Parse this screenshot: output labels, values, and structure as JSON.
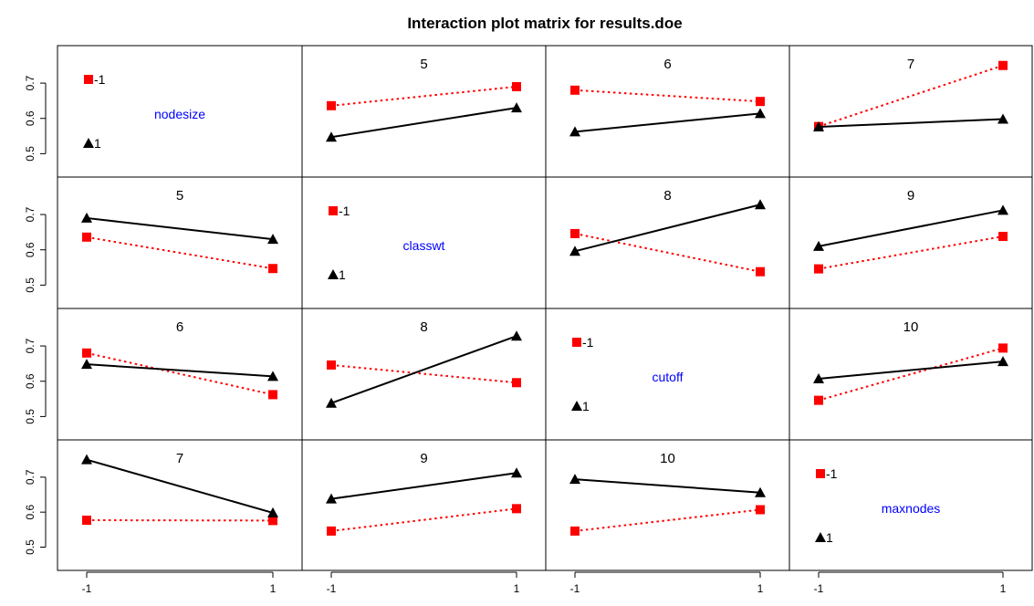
{
  "title": "Interaction plot matrix for results.doe",
  "colors": {
    "level_minus1": "#ff0000",
    "level_plus1": "#000000",
    "factor_label": "#0000ff",
    "frame": "#000000"
  },
  "chart_data": {
    "type": "line",
    "title": "Interaction plot matrix for results.doe",
    "factors": [
      "nodesize",
      "classwt",
      "cutoff",
      "maxnodes"
    ],
    "x_levels": [
      -1,
      1
    ],
    "x_tick_labels": [
      "-1",
      "1"
    ],
    "ylim": [
      0.47,
      0.77
    ],
    "y_ticks": [
      0.5,
      0.6,
      0.7
    ],
    "y_tick_labels": [
      "0.5",
      "0.6",
      "0.7"
    ],
    "grid": false,
    "legend_labels": [
      "-1",
      "1"
    ],
    "panels": [
      {
        "row": 0,
        "col": 0,
        "diagonal": true,
        "factor": "nodesize"
      },
      {
        "row": 0,
        "col": 1,
        "label": "5",
        "series": [
          {
            "level": "-1",
            "values": [
              0.636,
              0.69
            ]
          },
          {
            "level": "1",
            "values": [
              0.547,
              0.63
            ]
          }
        ]
      },
      {
        "row": 0,
        "col": 2,
        "label": "6",
        "series": [
          {
            "level": "-1",
            "values": [
              0.68,
              0.648
            ]
          },
          {
            "level": "1",
            "values": [
              0.562,
              0.614
            ]
          }
        ]
      },
      {
        "row": 0,
        "col": 3,
        "label": "7",
        "series": [
          {
            "level": "-1",
            "values": [
              0.577,
              0.75
            ]
          },
          {
            "level": "1",
            "values": [
              0.576,
              0.598
            ]
          }
        ]
      },
      {
        "row": 1,
        "col": 0,
        "label": "5",
        "series": [
          {
            "level": "-1",
            "values": [
              0.636,
              0.547
            ]
          },
          {
            "level": "1",
            "values": [
              0.69,
              0.63
            ]
          }
        ]
      },
      {
        "row": 1,
        "col": 1,
        "diagonal": true,
        "factor": "classwt"
      },
      {
        "row": 1,
        "col": 2,
        "label": "8",
        "series": [
          {
            "level": "-1",
            "values": [
              0.646,
              0.538
            ]
          },
          {
            "level": "1",
            "values": [
              0.596,
              0.728
            ]
          }
        ]
      },
      {
        "row": 1,
        "col": 3,
        "label": "9",
        "series": [
          {
            "level": "-1",
            "values": [
              0.546,
              0.638
            ]
          },
          {
            "level": "1",
            "values": [
              0.61,
              0.712
            ]
          }
        ]
      },
      {
        "row": 2,
        "col": 0,
        "label": "6",
        "series": [
          {
            "level": "-1",
            "values": [
              0.68,
              0.562
            ]
          },
          {
            "level": "1",
            "values": [
              0.648,
              0.614
            ]
          }
        ]
      },
      {
        "row": 2,
        "col": 1,
        "label": "8",
        "series": [
          {
            "level": "-1",
            "values": [
              0.646,
              0.596
            ]
          },
          {
            "level": "1",
            "values": [
              0.538,
              0.728
            ]
          }
        ]
      },
      {
        "row": 2,
        "col": 2,
        "diagonal": true,
        "factor": "cutoff"
      },
      {
        "row": 2,
        "col": 3,
        "label": "10",
        "series": [
          {
            "level": "-1",
            "values": [
              0.546,
              0.694
            ]
          },
          {
            "level": "1",
            "values": [
              0.607,
              0.656
            ]
          }
        ]
      },
      {
        "row": 3,
        "col": 0,
        "label": "7",
        "series": [
          {
            "level": "-1",
            "values": [
              0.577,
              0.576
            ]
          },
          {
            "level": "1",
            "values": [
              0.75,
              0.598
            ]
          }
        ]
      },
      {
        "row": 3,
        "col": 1,
        "label": "9",
        "series": [
          {
            "level": "-1",
            "values": [
              0.546,
              0.61
            ]
          },
          {
            "level": "1",
            "values": [
              0.638,
              0.712
            ]
          }
        ]
      },
      {
        "row": 3,
        "col": 2,
        "label": "10",
        "series": [
          {
            "level": "-1",
            "values": [
              0.546,
              0.607
            ]
          },
          {
            "level": "1",
            "values": [
              0.694,
              0.656
            ]
          }
        ]
      },
      {
        "row": 3,
        "col": 3,
        "diagonal": true,
        "factor": "maxnodes"
      }
    ]
  }
}
